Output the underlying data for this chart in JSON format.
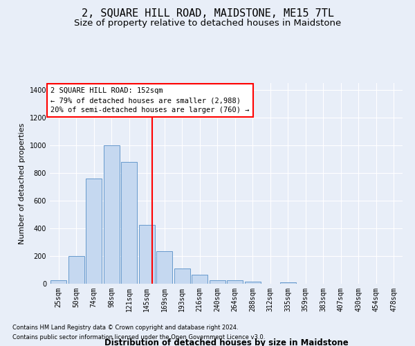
{
  "title": "2, SQUARE HILL ROAD, MAIDSTONE, ME15 7TL",
  "subtitle": "Size of property relative to detached houses in Maidstone",
  "xlabel": "Distribution of detached houses by size in Maidstone",
  "ylabel": "Number of detached properties",
  "footnote1": "Contains HM Land Registry data © Crown copyright and database right 2024.",
  "footnote2": "Contains public sector information licensed under the Open Government Licence v3.0.",
  "annotation_title": "2 SQUARE HILL ROAD: 152sqm",
  "annotation_line1": "← 79% of detached houses are smaller (2,988)",
  "annotation_line2": "20% of semi-detached houses are larger (760) →",
  "bar_color": "#c5d8f0",
  "bar_edge_color": "#6699cc",
  "vline_color": "red",
  "vline_x": 152,
  "categories": [
    "25sqm",
    "50sqm",
    "74sqm",
    "98sqm",
    "121sqm",
    "145sqm",
    "169sqm",
    "193sqm",
    "216sqm",
    "240sqm",
    "264sqm",
    "288sqm",
    "312sqm",
    "335sqm",
    "359sqm",
    "383sqm",
    "407sqm",
    "430sqm",
    "454sqm",
    "478sqm"
  ],
  "bin_edges": [
    13,
    37,
    61,
    85,
    109,
    133,
    157,
    181,
    205,
    229,
    253,
    277,
    301,
    325,
    349,
    373,
    397,
    421,
    445,
    469,
    493
  ],
  "bar_heights": [
    25,
    200,
    760,
    1000,
    880,
    425,
    235,
    110,
    65,
    25,
    25,
    15,
    0,
    10,
    0,
    0,
    0,
    0,
    0,
    0
  ],
  "ylim": [
    0,
    1450
  ],
  "yticks": [
    0,
    200,
    400,
    600,
    800,
    1000,
    1200,
    1400
  ],
  "background_color": "#e8eef8",
  "plot_bg_color": "#e8eef8",
  "grid_color": "#ffffff",
  "title_fontsize": 11,
  "subtitle_fontsize": 9.5,
  "xlabel_fontsize": 8.5,
  "ylabel_fontsize": 8,
  "tick_fontsize": 7,
  "annotation_fontsize": 7.5,
  "footnote_fontsize": 6
}
